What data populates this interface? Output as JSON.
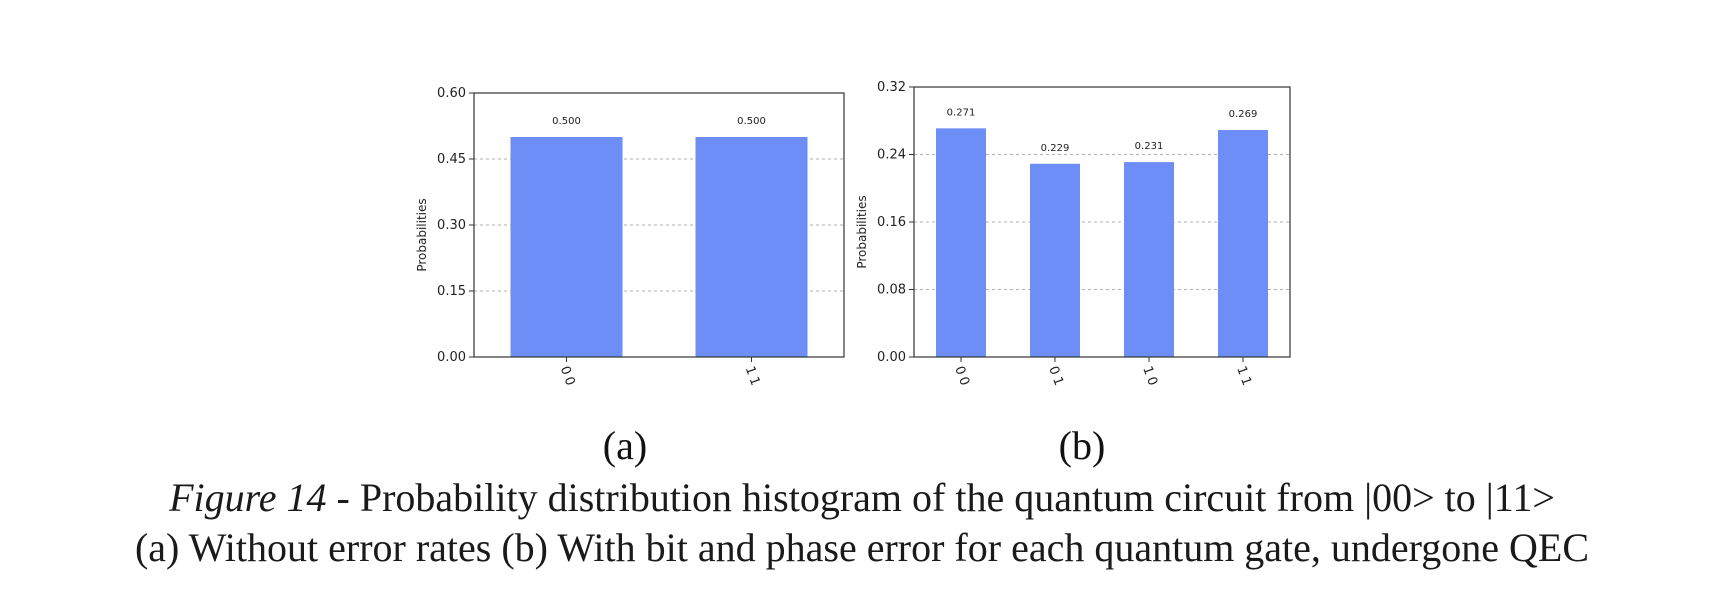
{
  "figure": {
    "panel_labels": [
      "(a)",
      "(b)"
    ],
    "caption_prefix": "Figure 14",
    "caption_line1": " - Probability distribution histogram of the quantum circuit from |00> to |11>",
    "caption_line2": "(a) Without error rates (b) With bit and phase error for each quantum gate, undergone QEC"
  },
  "colors": {
    "bar": "#6E8EF7",
    "grid": "#b0b0b0",
    "frame": "#333333",
    "text": "#222222"
  },
  "chart_data": [
    {
      "type": "bar",
      "categories": [
        "00",
        "11"
      ],
      "values": [
        0.5,
        0.5
      ],
      "data_labels": [
        "0.500",
        "0.500"
      ],
      "yticks": [
        "0.00",
        "0.15",
        "0.30",
        "0.45",
        "0.60"
      ],
      "title": "",
      "xlabel": "",
      "ylabel": "Probabilities",
      "ylim": [
        0,
        0.6
      ],
      "grid": "horizontal-dashed"
    },
    {
      "type": "bar",
      "categories": [
        "00",
        "01",
        "10",
        "11"
      ],
      "values": [
        0.271,
        0.229,
        0.231,
        0.269
      ],
      "data_labels": [
        "0.271",
        "0.229",
        "0.231",
        "0.269"
      ],
      "yticks": [
        "0.00",
        "0.08",
        "0.16",
        "0.24",
        "0.32"
      ],
      "title": "",
      "xlabel": "",
      "ylabel": "Probabilities",
      "ylim": [
        0,
        0.32
      ],
      "grid": "horizontal-dashed"
    }
  ]
}
